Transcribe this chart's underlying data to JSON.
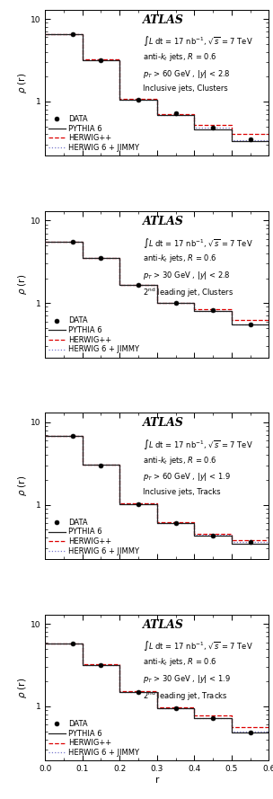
{
  "panels": [
    {
      "atlas_text": "ATLAS",
      "info_lines": [
        "$\\int L$ dt = 17 nb$^{-1}$, $\\sqrt{s}$ = 7 TeV",
        "anti-$k_t$ jets, $R$ = 0.6",
        "$p_T$ > 60 GeV , $|y|$ < 2.8",
        "Inclusive jets, Clusters"
      ],
      "data_x": [
        0.075,
        0.15,
        0.25,
        0.35,
        0.45,
        0.55
      ],
      "data_y": [
        6.5,
        3.2,
        1.05,
        0.72,
        0.48,
        0.35
      ],
      "pythia_x": [
        0,
        0.1,
        0.1,
        0.2,
        0.2,
        0.3,
        0.3,
        0.4,
        0.4,
        0.5,
        0.5,
        0.6
      ],
      "pythia_y": [
        6.6,
        6.6,
        3.2,
        3.2,
        1.05,
        1.05,
        0.68,
        0.68,
        0.46,
        0.46,
        0.33,
        0.33
      ],
      "herwig_x": [
        0,
        0.1,
        0.1,
        0.2,
        0.2,
        0.3,
        0.3,
        0.4,
        0.4,
        0.5,
        0.5,
        0.6
      ],
      "herwig_y": [
        6.6,
        6.6,
        3.25,
        3.25,
        1.07,
        1.07,
        0.7,
        0.7,
        0.52,
        0.52,
        0.4,
        0.4
      ],
      "jimmy_x": [
        0,
        0.1,
        0.1,
        0.2,
        0.2,
        0.3,
        0.3,
        0.4,
        0.4,
        0.5,
        0.5,
        0.6
      ],
      "jimmy_y": [
        6.55,
        6.55,
        3.22,
        3.22,
        1.06,
        1.06,
        0.69,
        0.69,
        0.48,
        0.48,
        0.34,
        0.34
      ]
    },
    {
      "atlas_text": "ATLAS",
      "info_lines": [
        "$\\int L$ dt = 17 nb$^{-1}$, $\\sqrt{s}$ = 7 TeV",
        "anti-$k_t$ jets, $R$ = 0.6",
        "$p_T$ > 30 GeV , $|y|$ < 2.8",
        "2$^{\\rm nd}$ leading jet, Clusters"
      ],
      "data_x": [
        0.075,
        0.15,
        0.25,
        0.35,
        0.45,
        0.55
      ],
      "data_y": [
        5.5,
        3.5,
        1.65,
        1.0,
        0.82,
        0.55
      ],
      "pythia_x": [
        0,
        0.1,
        0.1,
        0.2,
        0.2,
        0.3,
        0.3,
        0.4,
        0.4,
        0.5,
        0.5,
        0.6
      ],
      "pythia_y": [
        5.6,
        5.6,
        3.5,
        3.5,
        1.65,
        1.65,
        1.0,
        1.0,
        0.8,
        0.8,
        0.55,
        0.55
      ],
      "herwig_x": [
        0,
        0.1,
        0.1,
        0.2,
        0.2,
        0.3,
        0.3,
        0.4,
        0.4,
        0.5,
        0.5,
        0.6
      ],
      "herwig_y": [
        5.6,
        5.6,
        3.55,
        3.55,
        1.65,
        1.65,
        1.0,
        1.0,
        0.85,
        0.85,
        0.62,
        0.62
      ],
      "jimmy_x": [
        0,
        0.1,
        0.1,
        0.2,
        0.2,
        0.3,
        0.3,
        0.4,
        0.4,
        0.5,
        0.5,
        0.6
      ],
      "jimmy_y": [
        5.55,
        5.55,
        3.52,
        3.52,
        1.65,
        1.65,
        1.0,
        1.0,
        0.8,
        0.8,
        0.55,
        0.55
      ]
    },
    {
      "atlas_text": "ATLAS",
      "info_lines": [
        "$\\int L$ dt = 17 nb$^{-1}$, $\\sqrt{s}$ = 7 TeV",
        "anti-$k_t$ jets, $R$ = 0.6",
        "$p_T$ > 60 GeV , $|y|$ < 1.9",
        "Inclusive jets, Tracks"
      ],
      "data_x": [
        0.075,
        0.15,
        0.25,
        0.35,
        0.45,
        0.55
      ],
      "data_y": [
        6.8,
        3.0,
        1.02,
        0.6,
        0.42,
        0.35
      ],
      "pythia_x": [
        0,
        0.1,
        0.1,
        0.2,
        0.2,
        0.3,
        0.3,
        0.4,
        0.4,
        0.5,
        0.5,
        0.6
      ],
      "pythia_y": [
        6.8,
        6.8,
        3.05,
        3.05,
        1.02,
        1.02,
        0.6,
        0.6,
        0.42,
        0.42,
        0.34,
        0.34
      ],
      "herwig_x": [
        0,
        0.1,
        0.1,
        0.2,
        0.2,
        0.3,
        0.3,
        0.4,
        0.4,
        0.5,
        0.5,
        0.6
      ],
      "herwig_y": [
        6.8,
        6.8,
        3.08,
        3.08,
        1.04,
        1.04,
        0.62,
        0.62,
        0.44,
        0.44,
        0.37,
        0.37
      ],
      "jimmy_x": [
        0,
        0.1,
        0.1,
        0.2,
        0.2,
        0.3,
        0.3,
        0.4,
        0.4,
        0.5,
        0.5,
        0.6
      ],
      "jimmy_y": [
        6.78,
        6.78,
        3.06,
        3.06,
        1.03,
        1.03,
        0.6,
        0.6,
        0.43,
        0.43,
        0.35,
        0.35
      ]
    },
    {
      "atlas_text": "ATLAS",
      "info_lines": [
        "$\\int L$ dt = 17 nb$^{-1}$, $\\sqrt{s}$ = 7 TeV",
        "anti-$k_t$ jets, $R$ = 0.6",
        "$p_T$ > 30 GeV , $|y|$ < 1.9",
        "2$^{\\rm nd}$ leading jet, Tracks"
      ],
      "data_x": [
        0.075,
        0.15,
        0.25,
        0.35,
        0.45,
        0.55
      ],
      "data_y": [
        5.8,
        3.2,
        1.5,
        0.95,
        0.72,
        0.48
      ],
      "pythia_x": [
        0,
        0.1,
        0.1,
        0.2,
        0.2,
        0.3,
        0.3,
        0.4,
        0.4,
        0.5,
        0.5,
        0.6
      ],
      "pythia_y": [
        5.8,
        5.8,
        3.2,
        3.2,
        1.5,
        1.5,
        0.95,
        0.95,
        0.72,
        0.72,
        0.48,
        0.48
      ],
      "herwig_x": [
        0,
        0.1,
        0.1,
        0.2,
        0.2,
        0.3,
        0.3,
        0.4,
        0.4,
        0.5,
        0.5,
        0.6
      ],
      "herwig_y": [
        5.82,
        5.82,
        3.22,
        3.22,
        1.52,
        1.52,
        0.97,
        0.97,
        0.78,
        0.78,
        0.56,
        0.56
      ],
      "jimmy_x": [
        0,
        0.1,
        0.1,
        0.2,
        0.2,
        0.3,
        0.3,
        0.4,
        0.4,
        0.5,
        0.5,
        0.6
      ],
      "jimmy_y": [
        5.78,
        5.78,
        3.18,
        3.18,
        1.5,
        1.5,
        0.95,
        0.95,
        0.72,
        0.72,
        0.49,
        0.49
      ]
    }
  ],
  "colors": {
    "pythia": "#222222",
    "herwig": "#dd0000",
    "jimmy": "#7777cc",
    "data": "#000000"
  },
  "ylim": [
    0.22,
    13
  ],
  "xlim": [
    0,
    0.6
  ],
  "ylabel": "$\\rho$ (r)",
  "xlabel": "r",
  "legend_labels": [
    "DATA",
    "PYTHIA 6",
    "HERWIG++",
    "HERWIG 6 + JIMMY"
  ]
}
